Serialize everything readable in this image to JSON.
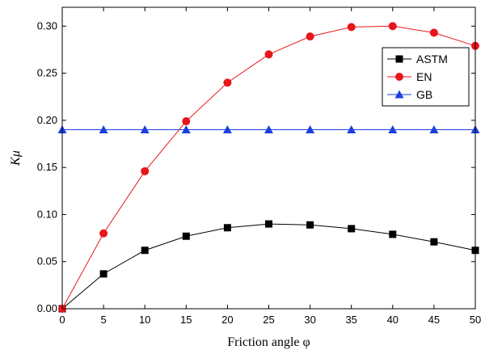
{
  "chart_data": {
    "type": "line",
    "title": "",
    "xlabel": "Friction angle φ",
    "ylabel": "Kμ",
    "xlim": [
      0,
      50
    ],
    "ylim": [
      0,
      0.32
    ],
    "xticks": [
      "0",
      "5",
      "10",
      "15",
      "20",
      "25",
      "30",
      "35",
      "40",
      "45",
      "50"
    ],
    "yticks": [
      "0.00",
      "0.05",
      "0.10",
      "0.15",
      "0.20",
      "0.25",
      "0.30"
    ],
    "legend_position": "top-right",
    "grid": false,
    "series": [
      {
        "name": "ASTM",
        "color": "#000000",
        "marker": "square",
        "x": [
          0,
          5,
          10,
          15,
          20,
          25,
          30,
          35,
          40,
          45,
          50
        ],
        "y": [
          0.0,
          0.037,
          0.062,
          0.077,
          0.086,
          0.09,
          0.089,
          0.085,
          0.079,
          0.071,
          0.062
        ]
      },
      {
        "name": "EN",
        "color": "#e8161b",
        "marker": "circle",
        "x": [
          0,
          5,
          10,
          15,
          20,
          25,
          30,
          35,
          40,
          45,
          50
        ],
        "y": [
          0.0,
          0.08,
          0.146,
          0.199,
          0.24,
          0.27,
          0.289,
          0.299,
          0.3,
          0.293,
          0.279
        ]
      },
      {
        "name": "GB",
        "color": "#1d3fe0",
        "marker": "triangle",
        "x": [
          0,
          5,
          10,
          15,
          20,
          25,
          30,
          35,
          40,
          45,
          50
        ],
        "y": [
          0.19,
          0.19,
          0.19,
          0.19,
          0.19,
          0.19,
          0.19,
          0.19,
          0.19,
          0.19,
          0.19
        ]
      }
    ]
  }
}
